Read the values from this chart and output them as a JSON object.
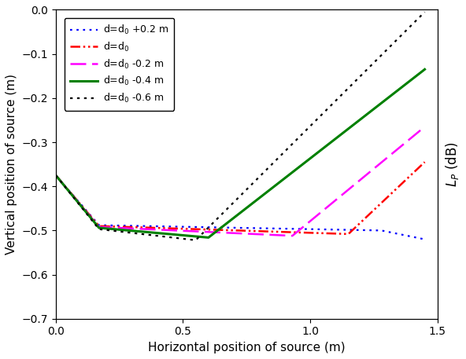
{
  "xlabel": "Horizontal position of source (m)",
  "ylabel": "Vertical position of source (m)",
  "ylabel_right": "$L_P$ (dB)",
  "xlim": [
    0,
    1.5
  ],
  "ylim": [
    -0.7,
    0.0
  ],
  "xticks": [
    0,
    0.5,
    1.0,
    1.5
  ],
  "yticks": [
    0,
    -0.1,
    -0.2,
    -0.3,
    -0.4,
    -0.5,
    -0.6,
    -0.7
  ],
  "legend_labels": [
    "d=d$_0$ +0.2 m",
    "d=d$_0$",
    "d=d$_0$ -0.2 m",
    "d=d$_0$ -0.4 m",
    "d=d$_0$ -0.6 m"
  ],
  "line_colors": [
    "blue",
    "red",
    "magenta",
    "#008000",
    "black"
  ],
  "background": "#ffffff"
}
